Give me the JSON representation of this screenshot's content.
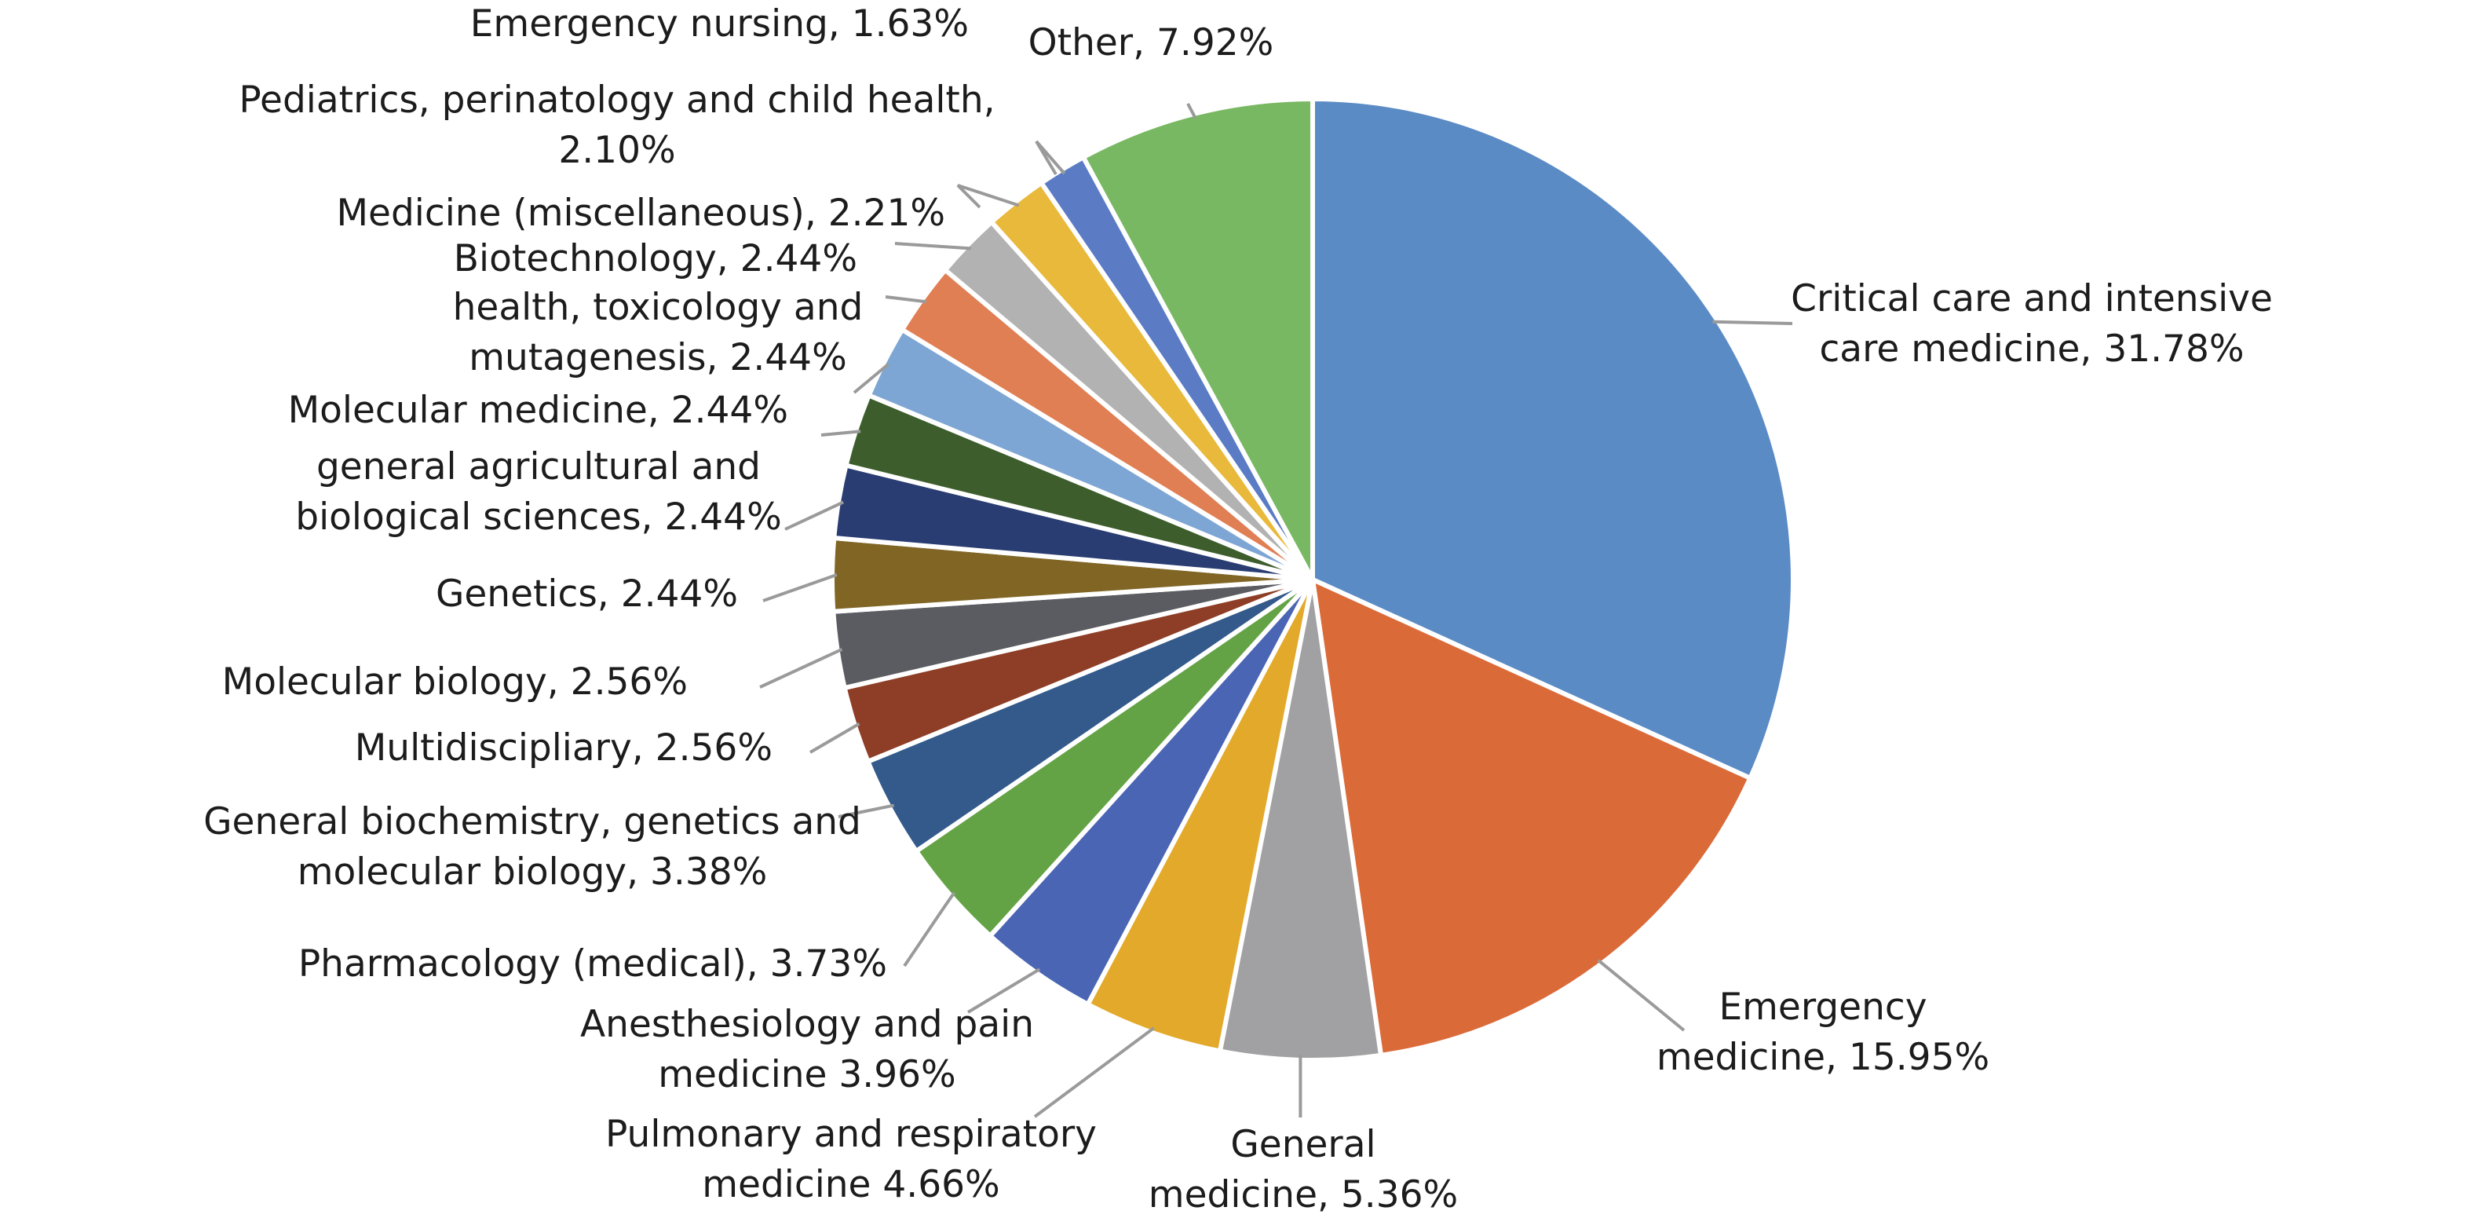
{
  "chart_data": {
    "type": "pie",
    "title": "",
    "legend": "none",
    "slices": [
      {
        "label": [
          "Critical care and intensive",
          "care medicine, 31.78%"
        ],
        "value": 31.78,
        "color": "#5B8BC5"
      },
      {
        "label": [
          "Emergency",
          "medicine, 15.95%"
        ],
        "value": 15.95,
        "color": "#DB6A39"
      },
      {
        "label": [
          "General",
          "medicine, 5.36%"
        ],
        "value": 5.36,
        "color": "#A1A1A3"
      },
      {
        "label": [
          "Pulmonary and respiratory",
          "medicine 4.66%"
        ],
        "value": 4.66,
        "color": "#E3A92B"
      },
      {
        "label": [
          "Anesthesiology and pain",
          "medicine 3.96%"
        ],
        "value": 3.96,
        "color": "#4A65B4"
      },
      {
        "label": [
          "Pharmacology (medical), 3.73%"
        ],
        "value": 3.73,
        "color": "#64A345"
      },
      {
        "label": [
          "General biochemistry, genetics and",
          "molecular biology, 3.38%"
        ],
        "value": 3.38,
        "color": "#335A8B"
      },
      {
        "label": [
          "Multidiscipliary, 2.56%"
        ],
        "value": 2.56,
        "color": "#8E3E26"
      },
      {
        "label": [
          "Molecular biology, 2.56%"
        ],
        "value": 2.56,
        "color": "#5A5C61"
      },
      {
        "label": [
          "Genetics, 2.44%"
        ],
        "value": 2.44,
        "color": "#806525"
      },
      {
        "label": [
          "general agricultural and",
          "biological sciences, 2.44%"
        ],
        "value": 2.44,
        "color": "#293D72"
      },
      {
        "label": [
          "Molecular medicine, 2.44%"
        ],
        "value": 2.44,
        "color": "#3D5E2C"
      },
      {
        "label": [
          "health, toxicology and",
          "mutagenesis, 2.44%"
        ],
        "value": 2.44,
        "color": "#7EA6D4"
      },
      {
        "label": [
          "Biotechnology, 2.44%"
        ],
        "value": 2.44,
        "color": "#E07F54"
      },
      {
        "label": [
          "Medicine (miscellaneous), 2.21%"
        ],
        "value": 2.21,
        "color": "#B2B2B2"
      },
      {
        "label": [
          "Pediatrics, perinatology and child health,",
          "2.10%"
        ],
        "value": 2.1,
        "color": "#E8B93B"
      },
      {
        "label": [
          "Emergency nursing, 1.63%"
        ],
        "value": 1.63,
        "color": "#5B7CC5"
      },
      {
        "label": [
          "Other, 7.92%"
        ],
        "value": 7.92,
        "color": "#79B863"
      }
    ]
  }
}
